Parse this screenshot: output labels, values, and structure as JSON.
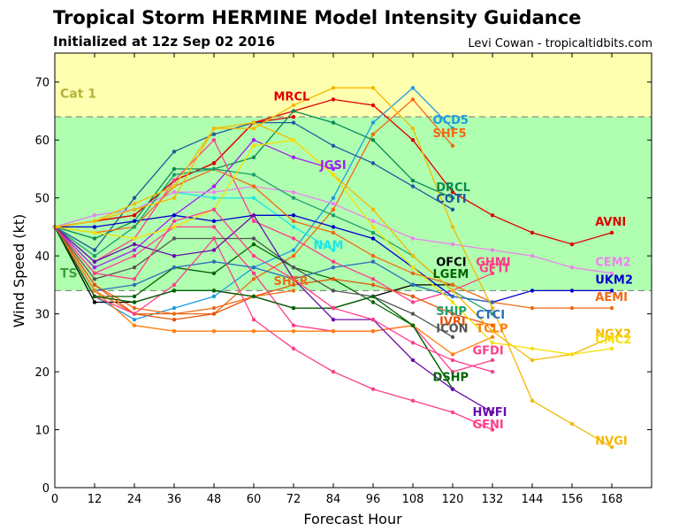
{
  "header": {
    "title": "Tropical Storm HERMINE Model Intensity Guidance",
    "subtitle": "Initialized at 12z Sep 02 2016",
    "credit": "Levi Cowan - tropicaltidbits.com"
  },
  "chart_data": {
    "type": "line",
    "xlabel": "Forecast Hour",
    "ylabel": "Wind Speed (kt)",
    "xlim": [
      0,
      180
    ],
    "ylim": [
      0,
      75
    ],
    "xticks": [
      0,
      12,
      24,
      36,
      48,
      60,
      72,
      84,
      96,
      108,
      120,
      132,
      144,
      156,
      168
    ],
    "yticks": [
      0,
      10,
      20,
      30,
      40,
      50,
      60,
      70
    ],
    "bands": [
      {
        "name": "Cat 1",
        "from": 64,
        "to": 75,
        "color": "#ffffb0",
        "label_color": "#b4b43c"
      },
      {
        "name": "TS",
        "from": 34,
        "to": 64,
        "color": "#b0ffb0",
        "label_color": "#3ca03c"
      }
    ],
    "series": [
      {
        "name": "MRCL",
        "color": "#dd0000",
        "x": [
          0,
          12,
          24,
          36,
          48,
          60,
          72
        ],
        "values": [
          45,
          46,
          47,
          53,
          56,
          63,
          64
        ]
      },
      {
        "name": "AVNI",
        "color": "#dd0000",
        "x": [
          0,
          12,
          24,
          36,
          48,
          60,
          72,
          84,
          96,
          108,
          120,
          132,
          144,
          156,
          168
        ],
        "values": [
          45,
          46,
          47,
          53,
          56,
          63,
          65,
          67,
          66,
          60,
          51,
          47,
          44,
          42,
          44
        ]
      },
      {
        "name": "OCD5",
        "color": "#1e9be0",
        "x": [
          0,
          12,
          24,
          36,
          48,
          60,
          72,
          84,
          96,
          108,
          120
        ],
        "values": [
          45,
          33,
          29,
          31,
          33,
          38,
          41,
          50,
          63,
          69,
          62
        ]
      },
      {
        "name": "SHF5",
        "color": "#f06a14",
        "x": [
          0,
          12,
          24,
          36,
          48,
          60,
          72,
          84,
          96,
          108,
          120
        ],
        "values": [
          45,
          35,
          31,
          30,
          30,
          36,
          40,
          48,
          61,
          67,
          59
        ]
      },
      {
        "name": "JGSI",
        "color": "#a020f0",
        "x": [
          0,
          12,
          24,
          36,
          48,
          60,
          72,
          84
        ],
        "values": [
          45,
          38,
          41,
          47,
          52,
          60,
          57,
          55
        ]
      },
      {
        "name": "DRCL",
        "color": "#0a8a55",
        "x": [
          0,
          12,
          24,
          36,
          48,
          60,
          72,
          84,
          96,
          108,
          120
        ],
        "values": [
          45,
          43,
          46,
          55,
          55,
          57,
          65,
          63,
          60,
          53,
          50
        ]
      },
      {
        "name": "COTI",
        "color": "#1f5aa0",
        "x": [
          0,
          12,
          24,
          36,
          48,
          60,
          72,
          84,
          96,
          108,
          120
        ],
        "values": [
          45,
          41,
          50,
          58,
          61,
          63,
          63,
          59,
          56,
          52,
          48
        ]
      },
      {
        "name": "NAM",
        "color": "#1ee6e6",
        "x": [
          0,
          12,
          24,
          36,
          48,
          60,
          72,
          84
        ],
        "values": [
          45,
          47,
          48,
          51,
          50,
          50,
          45,
          41
        ]
      },
      {
        "name": "OFCI",
        "color": "#000000",
        "x": [
          0,
          12,
          24,
          36,
          48,
          60,
          72,
          84,
          96,
          108,
          120
        ],
        "values": [
          45,
          32,
          32,
          34,
          34,
          33,
          31,
          31,
          33,
          35,
          35
        ]
      },
      {
        "name": "LGEM",
        "color": "#006400",
        "x": [
          0,
          12,
          24,
          36,
          48,
          60,
          72,
          84,
          96,
          108,
          120
        ],
        "values": [
          45,
          33,
          33,
          38,
          37,
          42,
          38,
          36,
          32,
          28,
          17
        ]
      },
      {
        "name": "SHFR",
        "color": "#f06a14",
        "x": [
          0,
          12,
          24,
          36,
          48,
          60,
          72
        ],
        "values": [
          45,
          34,
          30,
          30,
          31,
          33,
          34
        ]
      },
      {
        "name": "GHMI",
        "color": "#ff3d8b",
        "x": [
          0,
          12,
          24,
          36,
          48,
          60,
          72,
          84,
          96,
          108,
          120,
          132
        ],
        "values": [
          45,
          39,
          43,
          53,
          60,
          46,
          43,
          39,
          36,
          32,
          34,
          37
        ]
      },
      {
        "name": "GFTI",
        "color": "#ff3d8b",
        "x": [
          0,
          12,
          24,
          36,
          48,
          60,
          72,
          84,
          96,
          108,
          120,
          132
        ],
        "values": [
          45,
          37,
          40,
          45,
          45,
          37,
          28,
          27,
          27,
          28,
          20,
          22
        ]
      },
      {
        "name": "CEM2",
        "color": "#ee82ee",
        "x": [
          0,
          12,
          24,
          36,
          48,
          60,
          72,
          84,
          96,
          108,
          120,
          132,
          144,
          156,
          168
        ],
        "values": [
          45,
          47,
          48,
          51,
          51,
          52,
          51,
          49,
          46,
          43,
          42,
          41,
          40,
          38,
          37
        ]
      },
      {
        "name": "UKM2",
        "color": "#0000cc",
        "x": [
          0,
          12,
          24,
          36,
          48,
          60,
          72,
          84,
          96,
          108,
          120,
          132,
          144,
          156,
          168
        ],
        "values": [
          45,
          45,
          46,
          47,
          46,
          47,
          47,
          45,
          43,
          38,
          33,
          32,
          34,
          34,
          34
        ]
      },
      {
        "name": "AEMI",
        "color": "#f06a14",
        "x": [
          0,
          12,
          24,
          36,
          48,
          60,
          72,
          84,
          96,
          108,
          120,
          132,
          144,
          156,
          168
        ],
        "values": [
          45,
          44,
          45,
          52,
          55,
          52,
          46,
          44,
          40,
          37,
          35,
          32,
          31,
          31,
          31
        ]
      },
      {
        "name": "SHIP",
        "color": "#1e9e6e",
        "x": [
          0,
          12,
          24,
          36,
          48,
          60,
          72,
          84,
          96,
          108,
          120,
          132
        ],
        "values": [
          45,
          40,
          45,
          54,
          55,
          54,
          50,
          47,
          44,
          40,
          34,
          30
        ]
      },
      {
        "name": "IVRI",
        "color": "#e6550d",
        "x": [
          0,
          12,
          24,
          36,
          48,
          60,
          72,
          84,
          96,
          108,
          120,
          132
        ],
        "values": [
          45,
          35,
          30,
          29,
          30,
          33,
          35,
          36,
          35,
          33,
          30,
          28
        ]
      },
      {
        "name": "CTCI",
        "color": "#2c6fbb",
        "x": [
          0,
          12,
          24,
          36,
          48,
          60,
          72,
          84,
          96,
          108,
          120,
          132
        ],
        "values": [
          45,
          34,
          35,
          38,
          39,
          38,
          36,
          38,
          39,
          35,
          33,
          32
        ]
      },
      {
        "name": "ICON",
        "color": "#555555",
        "x": [
          0,
          12,
          24,
          36,
          48,
          60,
          72,
          84,
          96,
          108,
          120
        ],
        "values": [
          45,
          36,
          38,
          43,
          43,
          43,
          38,
          34,
          33,
          30,
          26
        ]
      },
      {
        "name": "TCLP",
        "color": "#ff7f0e",
        "x": [
          0,
          12,
          24,
          36,
          48,
          60,
          72,
          84,
          96,
          108,
          120,
          132
        ],
        "values": [
          45,
          34,
          28,
          27,
          27,
          27,
          27,
          27,
          27,
          28,
          23,
          26
        ]
      },
      {
        "name": "NGX2",
        "color": "#f5b800",
        "x": [
          0,
          12,
          24,
          36,
          48,
          60,
          72,
          84,
          96,
          108,
          120,
          132,
          144,
          156,
          168
        ],
        "values": [
          45,
          46,
          48,
          50,
          62,
          63,
          60,
          54,
          48,
          40,
          34,
          27,
          22,
          23,
          26
        ]
      },
      {
        "name": "CMC2",
        "color": "#f5e000",
        "x": [
          0,
          12,
          24,
          36,
          48,
          60,
          72,
          84,
          96,
          108,
          120,
          132,
          144,
          156,
          168
        ],
        "values": [
          45,
          44,
          43,
          45,
          48,
          59,
          60,
          54,
          45,
          38,
          32,
          25,
          24,
          23,
          24
        ]
      },
      {
        "name": "GFDI",
        "color": "#ff3d8b",
        "x": [
          0,
          12,
          24,
          36,
          48,
          60,
          72,
          84,
          96,
          108,
          120,
          132
        ],
        "values": [
          45,
          33,
          30,
          35,
          43,
          29,
          24,
          20,
          17,
          15,
          13,
          10
        ]
      },
      {
        "name": "DSHP",
        "color": "#006400",
        "x": [
          0,
          12,
          24,
          36,
          48,
          60,
          72,
          84,
          96,
          108,
          120
        ],
        "values": [
          45,
          33,
          32,
          34,
          34,
          33,
          31,
          31,
          33,
          28,
          17
        ]
      },
      {
        "name": "HWFI",
        "color": "#6a0dad",
        "x": [
          0,
          12,
          24,
          36,
          48,
          60,
          72,
          84,
          96,
          108,
          120,
          132
        ],
        "values": [
          45,
          39,
          42,
          40,
          41,
          47,
          36,
          29,
          29,
          22,
          17,
          13
        ]
      },
      {
        "name": "GFNI",
        "color": "#ff3d8b",
        "x": [
          0,
          12,
          24,
          36,
          48,
          60,
          72,
          84,
          96,
          108,
          120,
          132
        ],
        "values": [
          45,
          37,
          36,
          46,
          48,
          40,
          36,
          31,
          29,
          25,
          22,
          20
        ]
      },
      {
        "name": "NVGI",
        "color": "#f5b800",
        "x": [
          0,
          12,
          24,
          36,
          48,
          60,
          72,
          84,
          96,
          108,
          120,
          132,
          144,
          156,
          168
        ],
        "values": [
          45,
          46,
          49,
          52,
          62,
          62,
          66,
          69,
          69,
          62,
          45,
          31,
          15,
          11,
          7
        ]
      }
    ],
    "series_labels": [
      {
        "text": "MRCL",
        "x": 66,
        "y": 66.8,
        "color": "#dd0000",
        "anchor": "start"
      },
      {
        "text": "OCD5",
        "x": 114,
        "y": 62.8,
        "color": "#1e9be0",
        "anchor": "start"
      },
      {
        "text": "SHF5",
        "x": 114,
        "y": 60.5,
        "color": "#f06a14",
        "anchor": "start"
      },
      {
        "text": "JGSI",
        "x": 80,
        "y": 55,
        "color": "#a020f0",
        "anchor": "start"
      },
      {
        "text": "DRCL",
        "x": 115,
        "y": 51.2,
        "color": "#0a8a55",
        "anchor": "start"
      },
      {
        "text": "COTI",
        "x": 115,
        "y": 49.2,
        "color": "#1f5aa0",
        "anchor": "start"
      },
      {
        "text": "AVNI",
        "x": 163,
        "y": 45.2,
        "color": "#dd0000",
        "anchor": "start"
      },
      {
        "text": "NAM",
        "x": 78,
        "y": 41.2,
        "color": "#1ee6e6",
        "anchor": "start"
      },
      {
        "text": "OFCI",
        "x": 115,
        "y": 38.3,
        "color": "#000000",
        "anchor": "start"
      },
      {
        "text": "GHMI",
        "x": 127,
        "y": 38.3,
        "color": "#ff3d8b",
        "anchor": "start"
      },
      {
        "text": "CEM2",
        "x": 163,
        "y": 38.3,
        "color": "#ee82ee",
        "anchor": "start"
      },
      {
        "text": "GFTI",
        "x": 128,
        "y": 37.2,
        "color": "#ff3d8b",
        "anchor": "start"
      },
      {
        "text": "LGEM",
        "x": 114,
        "y": 36.2,
        "color": "#006400",
        "anchor": "start"
      },
      {
        "text": "UKM2",
        "x": 163,
        "y": 35.2,
        "color": "#0000cc",
        "anchor": "start"
      },
      {
        "text": "SHFR",
        "x": 66,
        "y": 35,
        "color": "#f06a14",
        "anchor": "start"
      },
      {
        "text": "AEMI",
        "x": 163,
        "y": 32.2,
        "color": "#f06a14",
        "anchor": "start"
      },
      {
        "text": "SHIP",
        "x": 115,
        "y": 29.8,
        "color": "#1e9e6e",
        "anchor": "start"
      },
      {
        "text": "CTCI",
        "x": 127,
        "y": 29.2,
        "color": "#2c6fbb",
        "anchor": "start"
      },
      {
        "text": "IVRI",
        "x": 116,
        "y": 28,
        "color": "#e6550d",
        "anchor": "start"
      },
      {
        "text": "ICON",
        "x": 115,
        "y": 26.8,
        "color": "#555555",
        "anchor": "start"
      },
      {
        "text": "TCLP",
        "x": 127,
        "y": 26.8,
        "color": "#ff7f0e",
        "anchor": "start"
      },
      {
        "text": "NGX2",
        "x": 163,
        "y": 25.9,
        "color": "#f5b800",
        "anchor": "start"
      },
      {
        "text": "CMC2",
        "x": 163,
        "y": 24.9,
        "color": "#f5e000",
        "anchor": "start"
      },
      {
        "text": "GFDI",
        "x": 126,
        "y": 23,
        "color": "#ff3d8b",
        "anchor": "start"
      },
      {
        "text": "DSHP",
        "x": 114,
        "y": 18.4,
        "color": "#006400",
        "anchor": "start"
      },
      {
        "text": "HWFI",
        "x": 126,
        "y": 12.4,
        "color": "#6a0dad",
        "anchor": "start"
      },
      {
        "text": "GFNI",
        "x": 126,
        "y": 10.2,
        "color": "#ff3d8b",
        "anchor": "start"
      },
      {
        "text": "NVGI",
        "x": 163,
        "y": 7.4,
        "color": "#f5b800",
        "anchor": "start"
      }
    ]
  }
}
